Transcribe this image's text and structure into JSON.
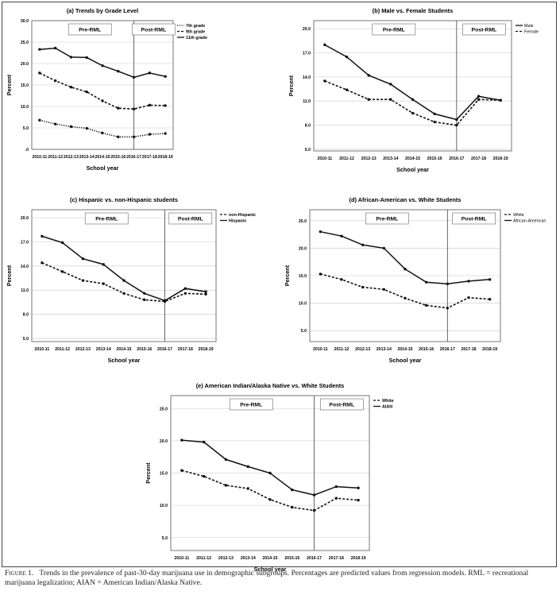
{
  "figure": {
    "caption_label": "Figure 1.",
    "caption_text": "Trends in the prevalence of past-30-day marijuana use in demographic subgroups. Percentages are predicted values from regression models. RML = recreational marijuana legalization; AIAN = American Indian/Alaska Native."
  },
  "chart_data": [
    {
      "type": "line",
      "title": "(a) Trends by Grade Level",
      "xlabel": "School year",
      "ylabel": "Percent",
      "categories": [
        "2010-11",
        "2011-12",
        "2012-13",
        "2013-14",
        "2014-15",
        "2015-16",
        "2016-17",
        "2017-18",
        "2018-19"
      ],
      "ylim": [
        0,
        30
      ],
      "yticks": [
        0,
        5,
        10,
        15,
        20,
        25,
        30
      ],
      "ytick_labels": [
        ".0",
        "5.0",
        "10.0",
        "15.0",
        "20.0",
        "25.0",
        "30.0"
      ],
      "period_labels": [
        "Pre-RML",
        "Post-RML"
      ],
      "legend_position": "top-right",
      "series": [
        {
          "name": "7th grade",
          "style": "dotted",
          "values": [
            6.8,
            5.9,
            5.3,
            4.9,
            3.8,
            2.9,
            2.9,
            3.5,
            3.7
          ]
        },
        {
          "name": "9th grade",
          "style": "dashed",
          "values": [
            17.8,
            16.0,
            14.5,
            13.4,
            11.3,
            9.6,
            9.4,
            10.3,
            10.2
          ]
        },
        {
          "name": "11th grade",
          "style": "solid",
          "values": [
            23.3,
            23.6,
            21.5,
            21.4,
            19.5,
            18.2,
            16.8,
            17.8,
            17.0
          ]
        }
      ]
    },
    {
      "type": "line",
      "title": "(b) Male vs. Female Students",
      "xlabel": "School year",
      "ylabel": "Percent",
      "categories": [
        "2010-11",
        "2011-12",
        "2012-13",
        "2013-14",
        "2014-15",
        "2015-16",
        "2016-17",
        "2017-18",
        "2018-19"
      ],
      "ylim": [
        4.8,
        21.0
      ],
      "yticks": [
        5.0,
        8.0,
        11.0,
        14.0,
        17.0,
        20.0
      ],
      "ytick_labels": [
        "5.0",
        "8.0",
        "11.0",
        "14.0",
        "17.0",
        "20.0"
      ],
      "period_labels": [
        "Pre-RML",
        "Post-RML"
      ],
      "legend_position": "top-right",
      "series": [
        {
          "name": "Male",
          "style": "solid",
          "values": [
            18.0,
            16.5,
            14.2,
            13.1,
            11.2,
            9.4,
            8.7,
            11.6,
            11.1
          ]
        },
        {
          "name": "Female",
          "style": "dashed",
          "values": [
            13.5,
            12.4,
            11.2,
            11.2,
            9.5,
            8.4,
            8.0,
            11.2,
            11.1
          ]
        }
      ]
    },
    {
      "type": "line",
      "title": "(c) Hispanic vs. non-Hispanic students",
      "xlabel": "School year",
      "ylabel": "Percent",
      "categories": [
        "2010-11",
        "2011-12",
        "2012-13",
        "2013-14",
        "2014-15",
        "2015-16",
        "2016-17",
        "2017-18",
        "2018-19"
      ],
      "ylim": [
        4.6,
        21.0
      ],
      "yticks": [
        5.0,
        8.0,
        11.0,
        14.0,
        17.0,
        20.0
      ],
      "ytick_labels": [
        "5.0",
        "8.0",
        "11.0",
        "14.0",
        "17.0",
        "20.0"
      ],
      "period_labels": [
        "Pre-RML",
        "Post-RML"
      ],
      "legend_position": "top-right",
      "series": [
        {
          "name": "non-Hispanic",
          "style": "dashed",
          "values": [
            14.4,
            13.3,
            12.2,
            11.8,
            10.6,
            9.8,
            9.6,
            10.6,
            10.5
          ]
        },
        {
          "name": "Hispanic",
          "style": "solid",
          "values": [
            17.7,
            16.9,
            14.9,
            14.2,
            12.2,
            10.6,
            9.7,
            11.2,
            10.8
          ]
        }
      ]
    },
    {
      "type": "line",
      "title": "(d) African-American vs. White Students",
      "xlabel": "School year",
      "ylabel": "Percent",
      "categories": [
        "2010-11",
        "2011-12",
        "2012-13",
        "2013-14",
        "2014-15",
        "2015-16",
        "2016-17",
        "2017-18",
        "2018-19"
      ],
      "ylim": [
        3.0,
        27.0
      ],
      "yticks": [
        5.0,
        10.0,
        15.0,
        20.0,
        25.0
      ],
      "ytick_labels": [
        "5.0",
        "10.0",
        "15.0",
        "20.0",
        "25.0"
      ],
      "period_labels": [
        "Pre-RML",
        "Post-RML"
      ],
      "legend_position": "top-right",
      "series": [
        {
          "name": "White",
          "style": "dashed",
          "values": [
            15.3,
            14.3,
            12.9,
            12.5,
            10.9,
            9.6,
            9.1,
            11.0,
            10.7
          ]
        },
        {
          "name": "African-American",
          "style": "solid",
          "values": [
            23.0,
            22.2,
            20.6,
            20.0,
            16.2,
            13.8,
            13.5,
            14.0,
            14.3
          ]
        }
      ]
    },
    {
      "type": "line",
      "title": "(e) American Indian/Alaska Native vs. White Students",
      "xlabel": "School year",
      "ylabel": "Percent",
      "categories": [
        "2010-11",
        "2011-12",
        "2012-13",
        "2013-14",
        "2014-15",
        "2015-16",
        "2016-17",
        "2017-18",
        "2018-19"
      ],
      "ylim": [
        3.0,
        27.0
      ],
      "yticks": [
        5.0,
        10.0,
        15.0,
        20.0,
        25.0
      ],
      "ytick_labels": [
        "5.0",
        "10.0",
        "15.0",
        "20.0",
        "25.0"
      ],
      "period_labels": [
        "Pre-RML",
        "Post-RML"
      ],
      "legend_position": "top-right",
      "series": [
        {
          "name": "White",
          "style": "dashed",
          "values": [
            15.4,
            14.5,
            13.1,
            12.6,
            10.9,
            9.7,
            9.2,
            11.1,
            10.8
          ]
        },
        {
          "name": "AIAN",
          "style": "solid",
          "values": [
            20.1,
            19.8,
            17.1,
            16.0,
            15.0,
            12.4,
            11.6,
            12.9,
            12.7
          ]
        }
      ]
    }
  ]
}
